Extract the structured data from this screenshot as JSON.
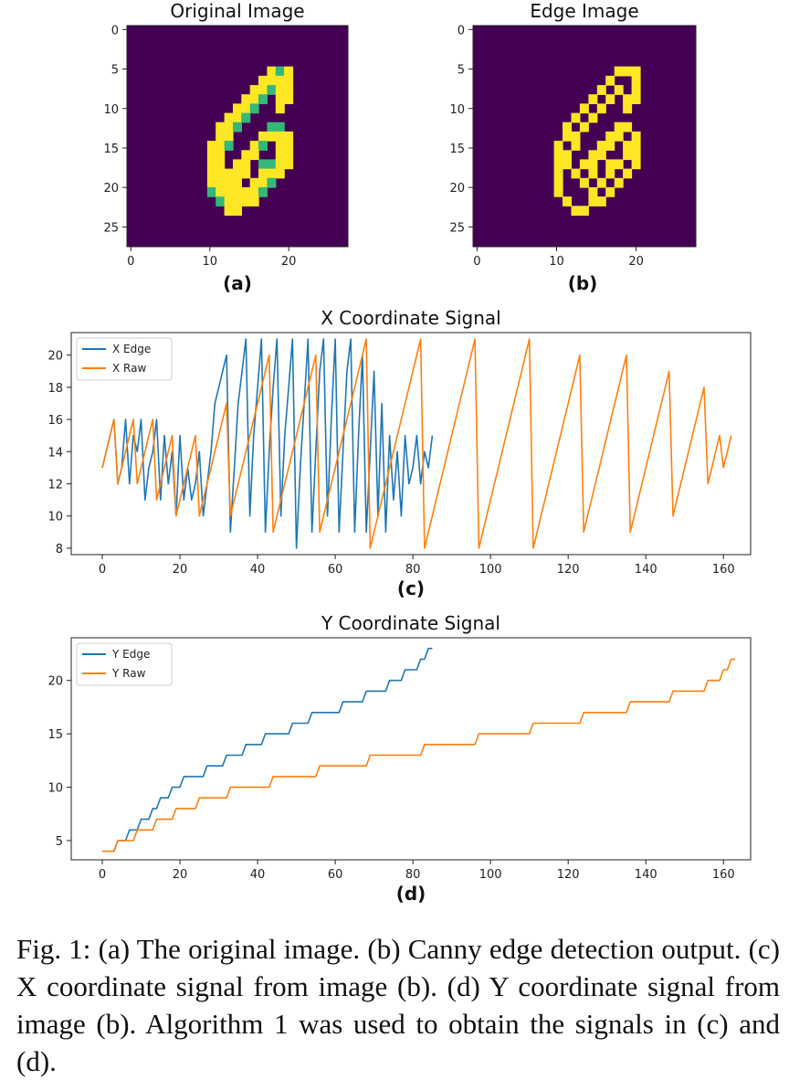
{
  "panels": {
    "a": {
      "title": "Original Image",
      "label": "(a)",
      "yticks": [
        "0",
        "5",
        "10",
        "15",
        "20",
        "25"
      ],
      "xticks": [
        "0",
        "10",
        "20"
      ],
      "colors": {
        "background": "#440154",
        "low": "#31688e",
        "mid": "#35b779",
        "high": "#fde725"
      }
    },
    "b": {
      "title": "Edge Image",
      "label": "(b)",
      "yticks": [
        "0",
        "5",
        "10",
        "15",
        "20",
        "25"
      ],
      "xticks": [
        "0",
        "10",
        "20"
      ],
      "colors": {
        "background": "#440154",
        "edge": "#fde725"
      }
    }
  },
  "chart_data": [
    {
      "type": "line",
      "title": "X Coordinate Signal",
      "label": "(c)",
      "xlim": [
        -8,
        167
      ],
      "ylim": [
        7.6,
        21.4
      ],
      "xticks": [
        0,
        20,
        40,
        60,
        80,
        100,
        120,
        140,
        160
      ],
      "yticks": [
        8,
        10,
        12,
        14,
        16,
        18,
        20
      ],
      "legend_position": "top-left",
      "series": [
        {
          "name": "X Edge",
          "color": "#1f77b4",
          "values": [
            13,
            14,
            15,
            16,
            12,
            13,
            16,
            12,
            15,
            14,
            16,
            11,
            13,
            14,
            16,
            11,
            15,
            12,
            14,
            10,
            15,
            11,
            13,
            11,
            12,
            14,
            10,
            12,
            14,
            17,
            18,
            19,
            20,
            9,
            13,
            17,
            19,
            21,
            10,
            15,
            18,
            21,
            9,
            14,
            18,
            21,
            10,
            15,
            18,
            21,
            8,
            13,
            17,
            21,
            9,
            14,
            19,
            21,
            10,
            16,
            21,
            9,
            14,
            19,
            21,
            9,
            15,
            20,
            9,
            14,
            19,
            10,
            17,
            9,
            15,
            11,
            14,
            10,
            15,
            12,
            13,
            15,
            12,
            14,
            13,
            15
          ]
        },
        {
          "name": "X Raw",
          "color": "#ff7f0e",
          "values": [
            13,
            14,
            15,
            16,
            12,
            13,
            14,
            15,
            16,
            12,
            13,
            14,
            15,
            16,
            11,
            12,
            13,
            14,
            15,
            10,
            11,
            12,
            13,
            14,
            15,
            10,
            11,
            12,
            13,
            14,
            15,
            16,
            17,
            10,
            11,
            12,
            13,
            14,
            15,
            16,
            17,
            18,
            19,
            20,
            9,
            10,
            11,
            12,
            13,
            14,
            15,
            16,
            17,
            18,
            19,
            20,
            9,
            10,
            11,
            12,
            13,
            14,
            15,
            16,
            17,
            18,
            19,
            20,
            21,
            8,
            9,
            10,
            11,
            12,
            13,
            14,
            15,
            16,
            17,
            18,
            19,
            20,
            21,
            8,
            9,
            10,
            11,
            12,
            13,
            14,
            15,
            16,
            17,
            18,
            19,
            20,
            21,
            8,
            9,
            10,
            11,
            12,
            13,
            14,
            15,
            16,
            17,
            18,
            19,
            20,
            21,
            8,
            9,
            10,
            11,
            12,
            13,
            14,
            15,
            16,
            17,
            18,
            19,
            20,
            9,
            10,
            11,
            12,
            13,
            14,
            15,
            16,
            17,
            18,
            19,
            20,
            9,
            10,
            11,
            12,
            13,
            14,
            15,
            16,
            17,
            18,
            19,
            10,
            11,
            12,
            13,
            14,
            15,
            16,
            17,
            18,
            12,
            13,
            14,
            15,
            13,
            14,
            15
          ]
        }
      ]
    },
    {
      "type": "line",
      "title": "Y Coordinate Signal",
      "label": "(d)",
      "xlim": [
        -8,
        167
      ],
      "ylim": [
        3.2,
        24.0
      ],
      "xticks": [
        0,
        20,
        40,
        60,
        80,
        100,
        120,
        140,
        160
      ],
      "yticks": [
        5,
        10,
        15,
        20
      ],
      "legend_position": "top-left",
      "series": [
        {
          "name": "Y Edge",
          "color": "#1f77b4",
          "values": [
            4,
            4,
            4,
            4,
            5,
            5,
            5,
            6,
            6,
            6,
            7,
            7,
            7,
            8,
            8,
            9,
            9,
            9,
            10,
            10,
            10,
            11,
            11,
            11,
            11,
            11,
            11,
            12,
            12,
            12,
            12,
            12,
            13,
            13,
            13,
            13,
            13,
            14,
            14,
            14,
            14,
            14,
            15,
            15,
            15,
            15,
            15,
            15,
            15,
            16,
            16,
            16,
            16,
            16,
            17,
            17,
            17,
            17,
            17,
            17,
            17,
            17,
            18,
            18,
            18,
            18,
            18,
            18,
            19,
            19,
            19,
            19,
            19,
            19,
            20,
            20,
            20,
            20,
            21,
            21,
            21,
            21,
            22,
            22,
            23,
            23
          ]
        },
        {
          "name": "Y Raw",
          "color": "#ff7f0e",
          "values": [
            4,
            4,
            4,
            4,
            5,
            5,
            5,
            5,
            5,
            6,
            6,
            6,
            6,
            6,
            7,
            7,
            7,
            7,
            7,
            8,
            8,
            8,
            8,
            8,
            8,
            9,
            9,
            9,
            9,
            9,
            9,
            9,
            9,
            10,
            10,
            10,
            10,
            10,
            10,
            10,
            10,
            10,
            10,
            10,
            11,
            11,
            11,
            11,
            11,
            11,
            11,
            11,
            11,
            11,
            11,
            11,
            12,
            12,
            12,
            12,
            12,
            12,
            12,
            12,
            12,
            12,
            12,
            12,
            12,
            13,
            13,
            13,
            13,
            13,
            13,
            13,
            13,
            13,
            13,
            13,
            13,
            13,
            13,
            14,
            14,
            14,
            14,
            14,
            14,
            14,
            14,
            14,
            14,
            14,
            14,
            14,
            14,
            15,
            15,
            15,
            15,
            15,
            15,
            15,
            15,
            15,
            15,
            15,
            15,
            15,
            15,
            16,
            16,
            16,
            16,
            16,
            16,
            16,
            16,
            16,
            16,
            16,
            16,
            16,
            17,
            17,
            17,
            17,
            17,
            17,
            17,
            17,
            17,
            17,
            17,
            17,
            18,
            18,
            18,
            18,
            18,
            18,
            18,
            18,
            18,
            18,
            18,
            19,
            19,
            19,
            19,
            19,
            19,
            19,
            19,
            19,
            20,
            20,
            20,
            20,
            21,
            21,
            22,
            22
          ]
        }
      ]
    }
  ],
  "caption": "Fig. 1: (a) The original image. (b) Canny edge detection output. (c) X coordinate signal from image (b). (d) Y coordinate signal from image (b). Algorithm 1 was used to obtain the signals in (c) and (d)."
}
